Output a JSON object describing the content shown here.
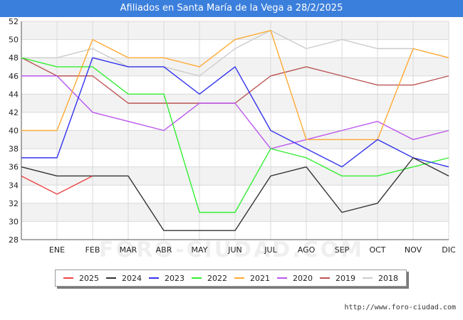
{
  "header": {
    "title": "Afiliados en Santa María de la Vega a 28/2/2025"
  },
  "watermark": "FORO-CIUDAD.COM",
  "source": "http://www.foro-ciudad.com",
  "chart_data": {
    "type": "line",
    "title": "Afiliados en Santa María de la Vega a 28/2/2025",
    "xlabel": "",
    "ylabel": "",
    "categories": [
      "",
      "ENE",
      "FEB",
      "MAR",
      "ABR",
      "MAY",
      "JUN",
      "JUL",
      "AGO",
      "SEP",
      "OCT",
      "NOV",
      "DIC"
    ],
    "ylim": [
      28,
      52
    ],
    "yticks": [
      28,
      30,
      32,
      34,
      36,
      38,
      40,
      42,
      44,
      46,
      48,
      50,
      52
    ],
    "grid": true,
    "legend_position": "bottom",
    "series": [
      {
        "name": "2025",
        "color": "#ee4444",
        "values": [
          35,
          33,
          35,
          null,
          null,
          null,
          null,
          null,
          null,
          null,
          null,
          null,
          null
        ]
      },
      {
        "name": "2024",
        "color": "#333333",
        "values": [
          36,
          35,
          35,
          35,
          29,
          29,
          29,
          35,
          36,
          31,
          32,
          37,
          35
        ]
      },
      {
        "name": "2023",
        "color": "#3333ee",
        "values": [
          37,
          37,
          48,
          47,
          47,
          44,
          47,
          40,
          38,
          36,
          39,
          37,
          36
        ]
      },
      {
        "name": "2022",
        "color": "#33ee33",
        "values": [
          48,
          47,
          47,
          44,
          44,
          31,
          31,
          38,
          37,
          35,
          35,
          36,
          37
        ]
      },
      {
        "name": "2021",
        "color": "#ffaa33",
        "values": [
          40,
          40,
          50,
          48,
          48,
          47,
          50,
          51,
          39,
          39,
          39,
          49,
          48
        ]
      },
      {
        "name": "2020",
        "color": "#bb55ee",
        "values": [
          46,
          46,
          42,
          41,
          40,
          43,
          43,
          38,
          39,
          40,
          41,
          39,
          40
        ]
      },
      {
        "name": "2019",
        "color": "#bb5555",
        "values": [
          48,
          46,
          46,
          43,
          43,
          43,
          43,
          46,
          47,
          46,
          45,
          45,
          46
        ]
      },
      {
        "name": "2018",
        "color": "#cccccc",
        "values": [
          48,
          48,
          49,
          47,
          47,
          46,
          49,
          51,
          49,
          50,
          49,
          49,
          48
        ]
      }
    ]
  }
}
